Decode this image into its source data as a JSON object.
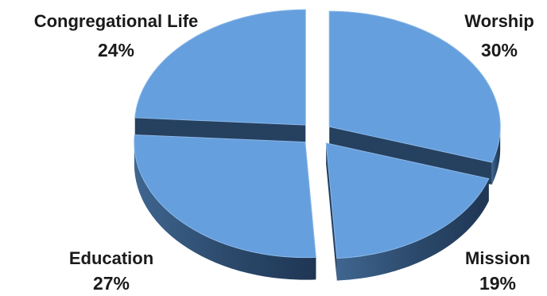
{
  "chart_data": {
    "type": "pie",
    "style": "3d-exploded",
    "title": "",
    "slices": [
      {
        "label": "Worship",
        "value": 30,
        "value_text": "30%"
      },
      {
        "label": "Mission",
        "value": 19,
        "value_text": "19%"
      },
      {
        "label": "Education",
        "value": 27,
        "value_text": "27%"
      },
      {
        "label": "Congregational Life",
        "value": 24,
        "value_text": "24%"
      }
    ],
    "colors": {
      "top": "#659fdd",
      "side": "#2c4a6c"
    }
  }
}
